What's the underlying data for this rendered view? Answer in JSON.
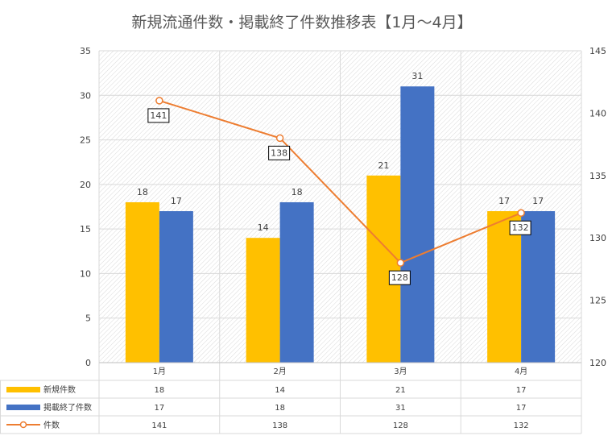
{
  "chart_data": {
    "type": "bar",
    "title": "新規流通件数・掲載終了件数推移表【1月～4月】",
    "categories": [
      "1月",
      "2月",
      "3月",
      "4月"
    ],
    "series": [
      {
        "name": "新規件数",
        "type": "bar",
        "axis": "left",
        "color": "#FFC000",
        "values": [
          18,
          14,
          21,
          17
        ]
      },
      {
        "name": "掲載終了件数",
        "type": "bar",
        "axis": "left",
        "color": "#4472C4",
        "values": [
          17,
          18,
          31,
          17
        ]
      },
      {
        "name": "件数",
        "type": "line",
        "axis": "right",
        "color": "#ED7D31",
        "values": [
          141,
          138,
          128,
          132
        ]
      }
    ],
    "y_left": {
      "min": 0,
      "max": 35,
      "ticks": [
        0,
        5,
        10,
        15,
        20,
        25,
        30,
        35
      ]
    },
    "y_right": {
      "min": 120,
      "max": 145,
      "ticks": [
        120,
        125,
        130,
        135,
        140,
        145
      ]
    },
    "grid": true,
    "legend": "data-table-below"
  }
}
